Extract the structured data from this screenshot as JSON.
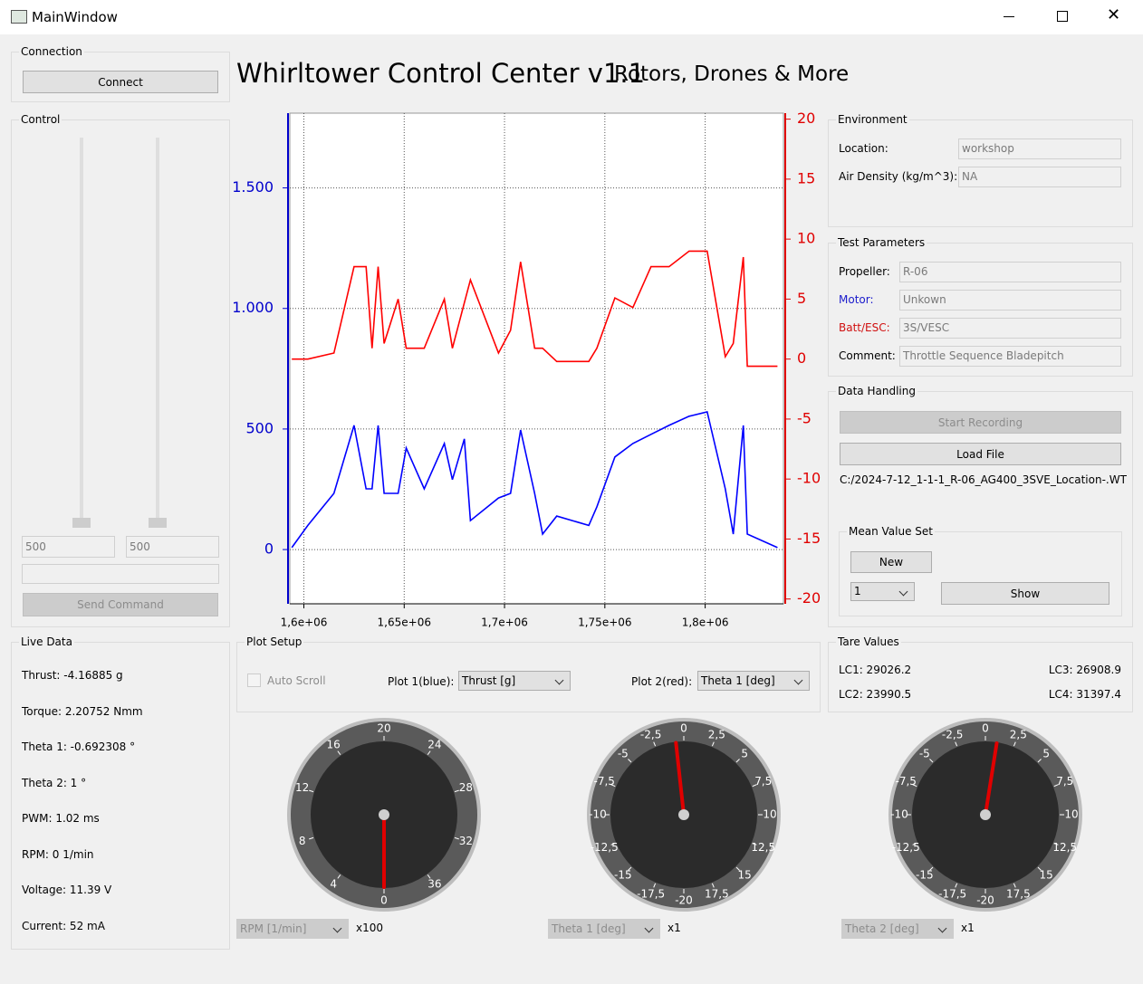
{
  "window": {
    "title": "MainWindow"
  },
  "connection": {
    "title": "Connection",
    "button": "Connect"
  },
  "control": {
    "title": "Control",
    "input1": "500",
    "input2": "500",
    "send": "Send Command"
  },
  "header": {
    "title": "Whirltower Control Center v1.1",
    "subtitle": "Rotors, Drones & More"
  },
  "environment": {
    "title": "Environment",
    "fields": [
      {
        "label": "Location:",
        "value": "workshop"
      },
      {
        "label": "Air Density (kg/m^3):",
        "value": "NA"
      }
    ]
  },
  "test_parameters": {
    "title": "Test Parameters",
    "fields": [
      {
        "label": "Propeller:",
        "value": "R-06"
      },
      {
        "label": "Motor:",
        "value": "Unkown"
      },
      {
        "label": "Batt/ESC:",
        "value": "3S/VESC"
      },
      {
        "label": "Comment:",
        "value": "Throttle Sequence Bladepitch"
      }
    ]
  },
  "data_handling": {
    "title": "Data Handling",
    "start": "Start Recording",
    "load": "Load File",
    "path": "C:/2024-7-12_1-1-1_R-06_AG400_3SVE_Location-.WT",
    "mean": {
      "title": "Mean Value Set",
      "new": "New",
      "select": "1",
      "show": "Show"
    }
  },
  "live_data": {
    "title": "Live Data",
    "items": [
      "Thrust: -4.16885 g",
      "Torque: 2.20752 Nmm",
      "Theta 1: -0.692308 °",
      "Theta 2: 1 °",
      "PWM: 1.02  ms",
      "RPM: 0 1/min",
      "Voltage: 11.39 V",
      "Current: 52 mA"
    ]
  },
  "plot_setup": {
    "title": "Plot Setup",
    "auto_scroll": "Auto Scroll",
    "plot1_label": "Plot 1(blue):",
    "plot1": "Thrust [g]",
    "plot2_label": "Plot 2(red):",
    "plot2": "Theta 1 [deg]"
  },
  "tare": {
    "title": "Tare Values",
    "items": [
      "LC1: 29026.2",
      "LC3: 26908.9",
      "LC2: 23990.5",
      "LC4: 31397.4"
    ]
  },
  "plot": {
    "type": "line",
    "grid": true,
    "xlim": [
      1593000,
      1839000
    ],
    "xticks": [
      {
        "value": 1600000,
        "label": "1,6e+06"
      },
      {
        "value": 1650000,
        "label": "1,65e+06"
      },
      {
        "value": 1700000,
        "label": "1,7e+06"
      },
      {
        "value": 1750000,
        "label": "1,75e+06"
      },
      {
        "value": 1800000,
        "label": "1,8e+06"
      }
    ],
    "ylim": [
      -225,
      1810
    ],
    "yticks": [
      0,
      500,
      {
        "value": 1000,
        "label": "1.000"
      },
      {
        "value": 1500,
        "label": "1.500"
      }
    ],
    "y2lim": [
      -20.4,
      20.5
    ],
    "y2ticks": [
      -20,
      -15,
      -10,
      -5,
      0,
      5,
      10,
      15,
      20
    ],
    "x": [
      1594000,
      1602000,
      1615000,
      1625000,
      1631000,
      1634000,
      1637000,
      1640000,
      1647000,
      1651000,
      1660000,
      1670000,
      1674000,
      1680000,
      1683000,
      1697000,
      1703000,
      1708000,
      1715000,
      1719000,
      1726000,
      1742000,
      1746000,
      1755000,
      1764000,
      1773000,
      1782000,
      1792000,
      1801000,
      1810000,
      1814000,
      1819000,
      1821000,
      1836000
    ],
    "series": [
      {
        "color": "#ff0000",
        "axis": "y2",
        "values": [
          0,
          0,
          0.5,
          7.7,
          7.7,
          0.9,
          7.7,
          1.3,
          5,
          0.9,
          0.9,
          5,
          0.9,
          4.7,
          6.6,
          0.5,
          2.4,
          8.1,
          0.9,
          0.9,
          -0.2,
          -0.2,
          0.9,
          5.1,
          4.3,
          7.7,
          7.7,
          9,
          9,
          0.2,
          1.3,
          8.5,
          -0.6,
          -0.6
        ]
      },
      {
        "color": "#0000ff",
        "values": [
          8,
          100,
          233,
          515,
          252,
          252,
          515,
          233,
          233,
          421,
          252,
          440,
          290,
          459,
          120,
          214,
          233,
          496,
          233,
          64,
          139,
          100,
          177,
          384,
          440,
          478,
          515,
          553,
          571,
          252,
          64,
          515,
          64,
          8
        ]
      }
    ]
  },
  "gauges": [
    {
      "select": "RPM [1/min]",
      "factor": "x100",
      "lim": [
        0,
        40
      ],
      "value": 0,
      "ticks": [
        0,
        4,
        8,
        12,
        16,
        20,
        24,
        28,
        32,
        36
      ]
    },
    {
      "select": "Theta 1 [deg]",
      "factor": "x1",
      "lim": [
        -20,
        20
      ],
      "value": -0.692308,
      "ticks": [
        -20,
        {
          "value": -17.5,
          "label": "-17,5"
        },
        -15,
        {
          "value": -12.5,
          "label": "-12,5"
        },
        -10,
        {
          "value": -7.5,
          "label": "-7,5"
        },
        -5,
        {
          "value": -2.5,
          "label": "-2,5"
        },
        0,
        {
          "value": 2.5,
          "label": "2,5"
        },
        5,
        {
          "value": 7.5,
          "label": "7,5"
        },
        10,
        {
          "value": 12.5,
          "label": "12,5"
        },
        15,
        {
          "value": 17.5,
          "label": "17,5"
        }
      ]
    },
    {
      "select": "Theta 2 [deg]",
      "factor": "x1",
      "lim": [
        -20,
        20
      ],
      "value": 1,
      "ticks": [
        -20,
        {
          "value": -17.5,
          "label": "-17,5"
        },
        -15,
        {
          "value": -12.5,
          "label": "-12,5"
        },
        -10,
        {
          "value": -7.5,
          "label": "-7,5"
        },
        -5,
        {
          "value": -2.5,
          "label": "-2,5"
        },
        0,
        {
          "value": 2.5,
          "label": "2,5"
        },
        5,
        {
          "value": 7.5,
          "label": "7,5"
        },
        10,
        {
          "value": 12.5,
          "label": "12,5"
        },
        15,
        {
          "value": 17.5,
          "label": "17,5"
        }
      ]
    }
  ]
}
